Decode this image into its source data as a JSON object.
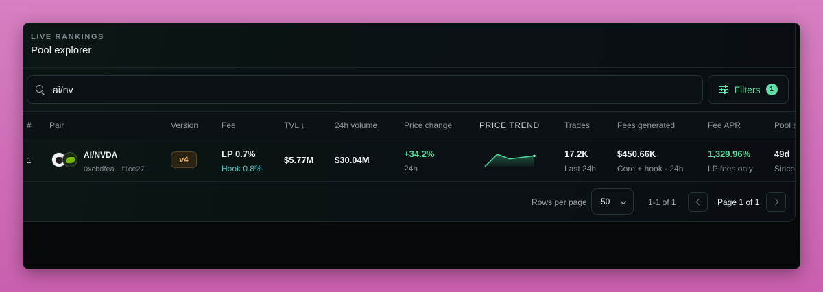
{
  "header": {
    "eyebrow": "LIVE RANKINGS",
    "title": "Pool explorer"
  },
  "search": {
    "value": "ai/nv"
  },
  "filters": {
    "label": "Filters",
    "count": "1"
  },
  "columns": {
    "rank": "#",
    "pair": "Pair",
    "version": "Version",
    "fee": "Fee",
    "tvl": "TVL ↓",
    "volume": "24h volume",
    "price_change": "Price change",
    "price_trend": "PRICE TREND",
    "trades": "Trades",
    "fees_generated": "Fees generated",
    "fee_apr": "Fee APR",
    "pool_age": "Pool a"
  },
  "rows": [
    {
      "rank": "1",
      "pair_name": "AI/NVDA",
      "pair_address": "0xcbdfea…f1ce27",
      "version": "v4",
      "fee_main": "LP 0.7%",
      "fee_sub": "Hook 0.8%",
      "tvl": "$5.77M",
      "volume": "$30.04M",
      "price_change": "+34.2%",
      "price_change_period": "24h",
      "price_trend": [
        1,
        9,
        6,
        7,
        8
      ],
      "trades": "17.2K",
      "trades_sub": "Last 24h",
      "fees_generated": "$450.66K",
      "fees_generated_sub": "Core + hook · 24h",
      "fee_apr": "1,329.96%",
      "fee_apr_sub": "LP fees only",
      "pool_age": "49d",
      "pool_age_sub": "Since"
    }
  ],
  "pagination": {
    "rows_per_page_label": "Rows per page",
    "rows_per_page_value": "50",
    "range": "1-1 of 1",
    "page": "Page 1 of 1"
  },
  "colors": {
    "accent": "#4fe0a0",
    "version_badge": "#e8b25a",
    "hook": "#4cc6c0"
  },
  "icons": {
    "search": "search-icon",
    "filters": "sliders-icon",
    "prev": "chevron-left-icon",
    "next": "chevron-right-icon",
    "select": "chevron-down-icon"
  }
}
